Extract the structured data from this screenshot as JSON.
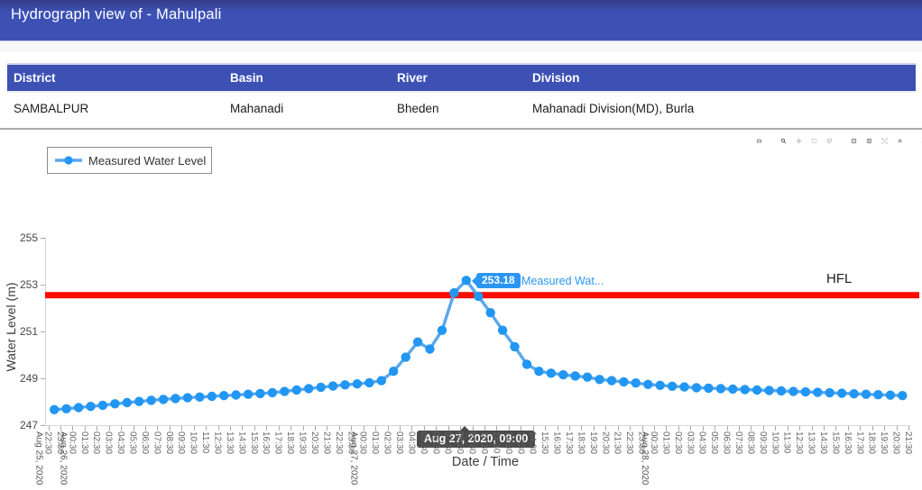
{
  "header": {
    "title": "Hydrograph view of - Mahulpali"
  },
  "station_table": {
    "columns": [
      "District",
      "Basin",
      "River",
      "Division"
    ],
    "rows": [
      [
        "SAMBALPUR",
        "Mahanadi",
        "Bheden",
        "Mahanadi Division(MD), Burla"
      ]
    ]
  },
  "toolbar": {
    "icons": [
      "download-plot-camera",
      "zoom",
      "pan",
      "box-select",
      "lasso-select",
      "zoom-in",
      "zoom-out",
      "autoscale",
      "reset-axes-home",
      "plotly-logo"
    ],
    "active_icon": "zoom"
  },
  "legend": {
    "label": "Measured Water Level"
  },
  "tooltip": {
    "value_label": "253.18",
    "series_label": "Measured Wat...",
    "time_label": "Aug 27, 2020, 09:00"
  },
  "colors": {
    "header_bg": "#3d51b5",
    "series_blue": "#2196f3",
    "series_line_blue": "#5aa7ee",
    "hfl_red": "#fb0b00",
    "tooltip_dark": "#4b4b4b"
  },
  "chart_data": {
    "type": "line",
    "title": "",
    "xlabel": "Date / Time",
    "ylabel": "Water Level (m)",
    "ylim": [
      247,
      255.3
    ],
    "yticks": [
      247,
      249,
      251,
      253,
      255
    ],
    "grid": false,
    "legend_position": "top-left",
    "x_start": "Aug 25, 2020 23:00",
    "x_interval_hours": 1,
    "series": [
      {
        "name": "Measured Water Level",
        "values": [
          247.66,
          247.7,
          247.75,
          247.8,
          247.85,
          247.91,
          247.96,
          248.01,
          248.06,
          248.1,
          248.14,
          248.17,
          248.2,
          248.23,
          248.26,
          248.29,
          248.32,
          248.35,
          248.39,
          248.44,
          248.5,
          248.56,
          248.62,
          248.67,
          248.72,
          248.76,
          248.81,
          248.9,
          249.3,
          249.9,
          250.55,
          250.25,
          251.05,
          252.65,
          253.18,
          252.5,
          251.8,
          251.05,
          250.35,
          249.6,
          249.3,
          249.22,
          249.15,
          249.1,
          249.05,
          248.95,
          248.9,
          248.85,
          248.8,
          248.74,
          248.7,
          248.66,
          248.63,
          248.6,
          248.58,
          248.56,
          248.54,
          248.52,
          248.5,
          248.48,
          248.46,
          248.44,
          248.42,
          248.4,
          248.38,
          248.36,
          248.34,
          248.32,
          248.3,
          248.28,
          248.26
        ]
      }
    ],
    "annotations": {
      "hfl_line": {
        "label": "HFL",
        "value": 252.55
      },
      "hover_point": {
        "index": 34,
        "value": 253.18,
        "time": "Aug 27, 2020, 09:00"
      }
    },
    "x_tick_labels": [
      "22:30",
      "23:30",
      "00:30",
      "01:30",
      "02:30",
      "03:30",
      "04:30",
      "05:30",
      "06:30",
      "07:30",
      "08:30",
      "09:30",
      "10:30",
      "11:30",
      "12:30",
      "13:30",
      "14:30",
      "15:30",
      "16:30",
      "17:30",
      "18:30",
      "19:30",
      "20:30",
      "21:30",
      "22:30",
      "23:30",
      "00:30",
      "01:30",
      "02:30",
      "03:30",
      "04:30",
      "05:30",
      "06:30",
      "07:30",
      "08:30",
      "09:30",
      "10:30",
      "11:30",
      "12:30",
      "13:30",
      "14:30",
      "15:30",
      "16:30",
      "17:30",
      "18:30",
      "19:30",
      "20:30",
      "21:30",
      "22:30",
      "23:30",
      "00:30",
      "01:30",
      "02:30",
      "03:30",
      "04:30",
      "05:30",
      "06:30",
      "07:30",
      "08:30",
      "09:30",
      "10:30",
      "11:30",
      "12:30",
      "13:30",
      "14:30",
      "15:30",
      "16:30",
      "17:30",
      "18:30",
      "19:30",
      "20:30",
      "21:30"
    ],
    "x_date_labels": [
      {
        "tick_index": 0,
        "label": "Aug 25, 2020"
      },
      {
        "tick_index": 2,
        "label": "Aug 26, 2020"
      },
      {
        "tick_index": 26,
        "label": "Aug 27, 2020"
      },
      {
        "tick_index": 50,
        "label": "Aug 28, 2020"
      }
    ]
  }
}
